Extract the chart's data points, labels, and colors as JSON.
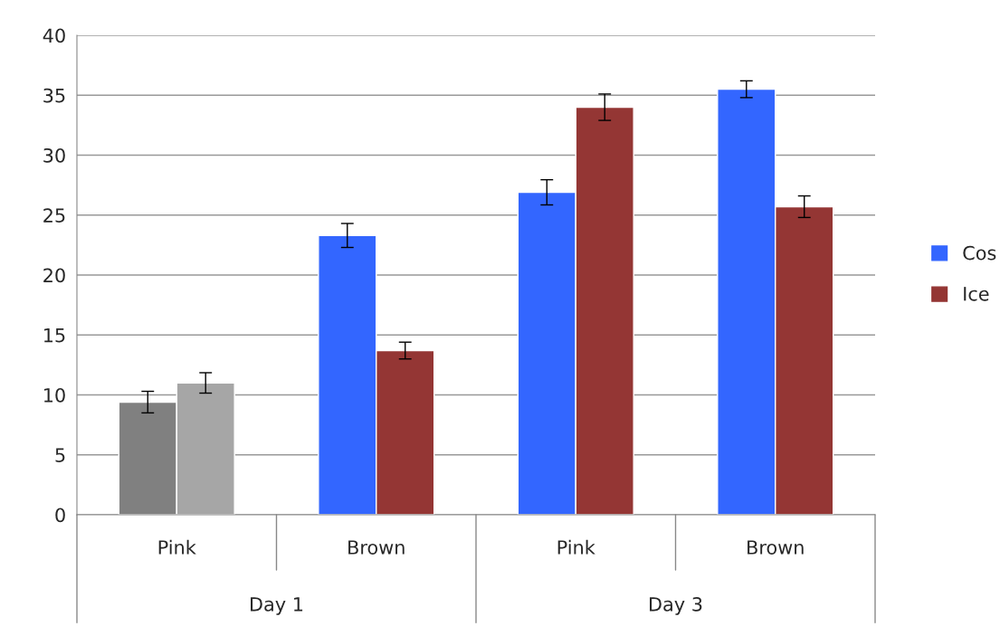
{
  "chart_data": {
    "type": "bar",
    "categories": [
      "Pink",
      "Brown",
      "Pink",
      "Brown"
    ],
    "series": [
      {
        "name": "Cos",
        "color": "#3366ff",
        "colors": [
          "#808080",
          "#3366ff",
          "#3366ff",
          "#3366ff"
        ],
        "values": [
          9.4,
          23.3,
          26.9,
          35.5
        ],
        "errors": [
          0.9,
          1.0,
          1.05,
          0.7
        ]
      },
      {
        "name": "Ice",
        "color": "#943634",
        "colors": [
          "#a6a6a6",
          "#943634",
          "#943634",
          "#943634"
        ],
        "values": [
          11.0,
          13.7,
          34.0,
          25.7
        ],
        "errors": [
          0.85,
          0.7,
          1.1,
          0.9
        ]
      }
    ],
    "annotations": [
      "Day 1",
      "Day 3"
    ],
    "ylim": [
      0,
      40
    ],
    "yticks": [
      0,
      5,
      10,
      15,
      20,
      25,
      30,
      35,
      40
    ],
    "grid": "y",
    "legend": "right"
  }
}
